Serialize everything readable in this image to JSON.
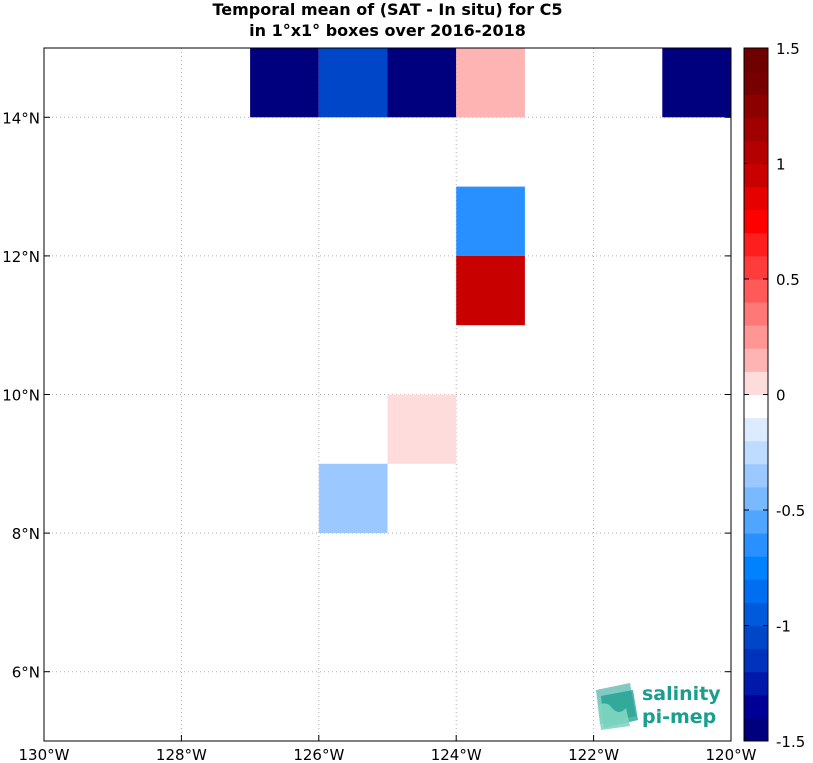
{
  "title": {
    "line1": "Temporal mean of (SAT - In situ) for C5",
    "line2": "in 1°x1° boxes over 2016-2018"
  },
  "map": {
    "lon_range": [
      -130,
      -120
    ],
    "lat_range": [
      5,
      15
    ],
    "lon_ticks": [
      {
        "value": -130,
        "label": "130°W"
      },
      {
        "value": -128,
        "label": "128°W"
      },
      {
        "value": -126,
        "label": "126°W"
      },
      {
        "value": -124,
        "label": "124°W"
      },
      {
        "value": -122,
        "label": "122°W"
      },
      {
        "value": -120,
        "label": "120°W"
      }
    ],
    "lat_ticks": [
      {
        "value": 6,
        "label": "6°N"
      },
      {
        "value": 8,
        "label": "8°N"
      },
      {
        "value": 10,
        "label": "10°N"
      },
      {
        "value": 12,
        "label": "12°N"
      },
      {
        "value": 14,
        "label": "14°N"
      }
    ],
    "grid": "dotted"
  },
  "boxes": [
    {
      "lon_min": -127,
      "lat_min": 14,
      "value": -1.5,
      "color": "#00007f"
    },
    {
      "lon_min": -126,
      "lat_min": 14,
      "value": -1.2,
      "color": "#0046c8"
    },
    {
      "lon_min": -125,
      "lat_min": 14,
      "value": -1.5,
      "color": "#00007f"
    },
    {
      "lon_min": -124,
      "lat_min": 14,
      "value": 0.3,
      "color": "#ffb4b4"
    },
    {
      "lon_min": -121,
      "lat_min": 14,
      "value": -1.5,
      "color": "#00007f"
    },
    {
      "lon_min": -124,
      "lat_min": 12,
      "value": -0.7,
      "color": "#2891ff"
    },
    {
      "lon_min": -124,
      "lat_min": 11,
      "value": 1.1,
      "color": "#c80000"
    },
    {
      "lon_min": -125,
      "lat_min": 9,
      "value": 0.15,
      "color": "#ffdcdc"
    },
    {
      "lon_min": -126,
      "lat_min": 8,
      "value": -0.35,
      "color": "#9bc8ff"
    }
  ],
  "colorbar": {
    "range": [
      -1.5,
      1.5
    ],
    "ticks": [
      {
        "value": 1.5,
        "label": "1.5"
      },
      {
        "value": 1,
        "label": "1"
      },
      {
        "value": 0.5,
        "label": "0.5"
      },
      {
        "value": 0,
        "label": "0"
      },
      {
        "value": -0.5,
        "label": "-0.5"
      },
      {
        "value": -1,
        "label": "-1"
      },
      {
        "value": -1.5,
        "label": "-1.5"
      }
    ],
    "colors": [
      "#00007f",
      "#000096",
      "#0019aa",
      "#0032be",
      "#0046c8",
      "#005adc",
      "#006ef0",
      "#0082ff",
      "#2891ff",
      "#50a5ff",
      "#78b9ff",
      "#9bc8ff",
      "#bedcff",
      "#dcebff",
      "#ffffff",
      "#ffdcdc",
      "#ffb4b4",
      "#ff9696",
      "#ff7878",
      "#ff5a5a",
      "#ff3c3c",
      "#ff1e1e",
      "#ff0000",
      "#e60000",
      "#c80000",
      "#b40000",
      "#a00000",
      "#8c0000",
      "#780000",
      "#6e0000"
    ]
  },
  "logo": {
    "line1": "salinity",
    "line2": "pi-mep",
    "color": "#1a9e8f"
  }
}
